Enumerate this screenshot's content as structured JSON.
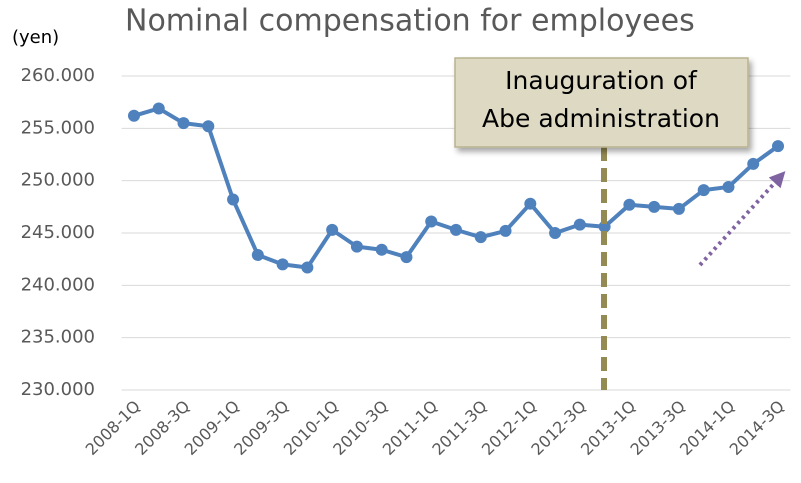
{
  "chart_data": {
    "type": "line",
    "title": "Nominal compensation for employees",
    "y_label": "(yen)",
    "categories": [
      "2008-1Q",
      null,
      "2008-3Q",
      null,
      "2009-1Q",
      null,
      "2009-3Q",
      null,
      "2010-1Q",
      null,
      "2010-3Q",
      null,
      "2011-1Q",
      null,
      "2011-3Q",
      null,
      "2012-1Q",
      null,
      "2012-3Q",
      null,
      "2013-1Q",
      null,
      "2013-3Q",
      null,
      "2014-1Q",
      null,
      "2014-3Q"
    ],
    "series": [
      {
        "color": "#4f81bd",
        "values": [
          256.2,
          256.9,
          255.5,
          255.2,
          248.2,
          242.9,
          242.0,
          241.7,
          245.3,
          243.7,
          243.4,
          242.7,
          246.1,
          245.3,
          244.6,
          245.2,
          247.8,
          245.0,
          245.8,
          245.6,
          247.7,
          247.5,
          247.3,
          249.1,
          249.4,
          251.6,
          253.3
        ]
      }
    ],
    "ylim": [
      230,
      260
    ],
    "yticks": [
      {
        "value": 230,
        "label": "230.000"
      },
      {
        "value": 235,
        "label": "235.000"
      },
      {
        "value": 240,
        "label": "240.000"
      },
      {
        "value": 245,
        "label": "245.000"
      },
      {
        "value": 250,
        "label": "250.000"
      },
      {
        "value": 255,
        "label": "255.000"
      },
      {
        "value": 260,
        "label": "260.000"
      }
    ],
    "grid": true,
    "annotation": {
      "lines": [
        "Inauguration of",
        "Abe administration"
      ]
    }
  }
}
